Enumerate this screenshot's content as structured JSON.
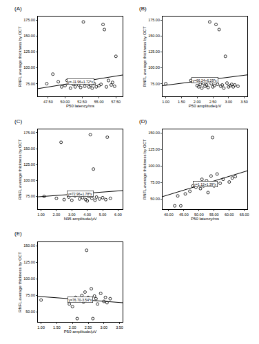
{
  "chart_data": [
    {
      "type": "scatter",
      "title": "(A)",
      "x_label": "P50 latency/ms",
      "y_label": "RNFL average thickness by OCT",
      "annotation": "y=-11.96+1.72*x",
      "color": "#000000",
      "marker": "open_circle",
      "x": [
        47.3,
        48.2,
        49.0,
        49.5,
        50.0,
        50.3,
        50.8,
        51.2,
        51.5,
        51.8,
        52.0,
        52.3,
        52.7,
        52.9,
        53.2,
        53.5,
        53.8,
        54.0,
        54.3,
        54.6,
        55.0,
        55.3,
        55.6,
        55.8,
        56.1,
        56.4,
        56.8,
        57.0,
        57.3,
        57.5
      ],
      "values": [
        75,
        90,
        78,
        70,
        72,
        80,
        68,
        74,
        70,
        79,
        73,
        69,
        172,
        71,
        76,
        70,
        73,
        68,
        75,
        70,
        72,
        74,
        168,
        160,
        70,
        80,
        73,
        77,
        71,
        118
      ],
      "fit_line": {
        "x": [
          46,
          58.5
        ],
        "values": [
          67.2,
          88.66
        ]
      },
      "xlim": [
        46,
        58.5
      ],
      "ylim": [
        55,
        180
      ],
      "xticks": [
        {
          "value": 47.5,
          "label": "47.50"
        },
        {
          "value": 50,
          "label": "50.00"
        },
        {
          "value": 52.5,
          "label": "52.50"
        },
        {
          "value": 55,
          "label": "55.00"
        },
        {
          "value": 57.5,
          "label": "57.50"
        }
      ],
      "yticks": [
        {
          "value": 75,
          "label": "75.00"
        },
        {
          "value": 100,
          "label": "100.00"
        },
        {
          "value": 125,
          "label": "125.00"
        },
        {
          "value": 150,
          "label": "150.00"
        },
        {
          "value": 175,
          "label": "175.00"
        }
      ]
    },
    {
      "type": "scatter",
      "title": "(B)",
      "x_label": "P50 amplitude/μV",
      "y_label": "RNFL average thickness by OCT",
      "annotation": "y=66.24+6.29*x",
      "color": "#000000",
      "marker": "open_circle",
      "x": [
        1.0,
        1.8,
        2.0,
        2.05,
        2.1,
        2.15,
        2.2,
        2.25,
        2.3,
        2.35,
        2.4,
        2.45,
        2.5,
        2.55,
        2.6,
        2.65,
        2.7,
        2.75,
        2.8,
        2.85,
        2.9,
        2.95,
        3.0,
        3.05,
        3.1,
        3.15,
        3.2,
        3.3
      ],
      "values": [
        75,
        80,
        72,
        70,
        74,
        68,
        76,
        71,
        73,
        69,
        172,
        75,
        70,
        72,
        168,
        74,
        160,
        71,
        73,
        68,
        118,
        76,
        70,
        72,
        74,
        70,
        73,
        71
      ],
      "fit_line": {
        "x": [
          0.9,
          3.6
        ],
        "values": [
          71.9,
          88.88
        ]
      },
      "xlim": [
        0.9,
        3.6
      ],
      "ylim": [
        55,
        180
      ],
      "xticks": [
        {
          "value": 1,
          "label": "1.00"
        },
        {
          "value": 1.5,
          "label": "1.50"
        },
        {
          "value": 2,
          "label": "2.00"
        },
        {
          "value": 2.5,
          "label": "2.50"
        },
        {
          "value": 3,
          "label": "3.00"
        },
        {
          "value": 3.5,
          "label": "3.50"
        }
      ],
      "yticks": [
        {
          "value": 75,
          "label": "75.00"
        },
        {
          "value": 100,
          "label": "100.00"
        },
        {
          "value": 125,
          "label": "125.00"
        },
        {
          "value": 150,
          "label": "150.00"
        },
        {
          "value": 175,
          "label": "175.00"
        }
      ]
    },
    {
      "type": "scatter",
      "title": "(C)",
      "x_label": "N95 amplitude/μV",
      "y_label": "RNFL average thickness by OCT",
      "annotation": "y=72.96+1.78*x",
      "color": "#000000",
      "marker": "open_circle",
      "x": [
        1.2,
        2.0,
        2.3,
        2.5,
        2.8,
        3.0,
        3.2,
        3.5,
        3.7,
        3.9,
        4.0,
        4.1,
        4.2,
        4.3,
        4.4,
        4.5,
        4.6,
        4.8,
        5.0,
        5.2,
        5.3,
        5.5
      ],
      "values": [
        75,
        72,
        160,
        70,
        74,
        69,
        76,
        71,
        73,
        70,
        68,
        75,
        172,
        72,
        118,
        69,
        74,
        71,
        73,
        70,
        168,
        72
      ],
      "fit_line": {
        "x": [
          0.8,
          6.3
        ],
        "values": [
          74.38,
          84.17
        ]
      },
      "xlim": [
        0.8,
        6.3
      ],
      "ylim": [
        55,
        180
      ],
      "xticks": [
        {
          "value": 1,
          "label": "1.00"
        },
        {
          "value": 2,
          "label": "2.00"
        },
        {
          "value": 3,
          "label": "3.00"
        },
        {
          "value": 4,
          "label": "4.00"
        },
        {
          "value": 5,
          "label": "5.00"
        },
        {
          "value": 6,
          "label": "6.00"
        }
      ],
      "yticks": [
        {
          "value": 75,
          "label": "75.00"
        },
        {
          "value": 100,
          "label": "100.00"
        },
        {
          "value": 125,
          "label": "125.00"
        },
        {
          "value": 150,
          "label": "150.00"
        },
        {
          "value": 175,
          "label": "175.00"
        }
      ]
    },
    {
      "type": "scatter",
      "title": "(D)",
      "x_label": "P50 latency/ms",
      "y_label": "RNFL average thickness by OCT",
      "annotation": "y=1.12+1.39*x",
      "color": "#000000",
      "marker": "open_circle",
      "x": [
        42,
        43,
        44,
        45.5,
        47,
        48,
        49,
        49.5,
        50,
        50.5,
        51,
        51.5,
        52,
        52.5,
        53,
        53.5,
        54,
        54.5,
        55,
        56,
        57,
        58,
        60,
        61,
        62
      ],
      "values": [
        40,
        55,
        40,
        58,
        62,
        70,
        68,
        72,
        75,
        66,
        80,
        70,
        74,
        78,
        60,
        72,
        85,
        143,
        70,
        88,
        74,
        80,
        76,
        82,
        84
      ],
      "fit_line": {
        "x": [
          38,
          66
        ],
        "values": [
          53.94,
          92.86
        ]
      },
      "xlim": [
        38,
        66
      ],
      "ylim": [
        35,
        155
      ],
      "xticks": [
        {
          "value": 40,
          "label": "40.00"
        },
        {
          "value": 45,
          "label": "45.00"
        },
        {
          "value": 50,
          "label": "50.00"
        },
        {
          "value": 55,
          "label": "55.00"
        },
        {
          "value": 60,
          "label": "60.00"
        },
        {
          "value": 65,
          "label": "65.00"
        }
      ],
      "yticks": [
        {
          "value": 50,
          "label": "50.00"
        },
        {
          "value": 75,
          "label": "75.00"
        },
        {
          "value": 100,
          "label": "100.00"
        },
        {
          "value": 125,
          "label": "125.00"
        },
        {
          "value": 150,
          "label": "150.00"
        }
      ]
    },
    {
      "type": "scatter",
      "title": "(E)",
      "x_label": "P50 amplitude/μV",
      "y_label": "RNFL average thickness by OCT",
      "annotation": "y=76.70-3.54*x",
      "color": "#000000",
      "marker": "open_circle",
      "x": [
        1.0,
        1.9,
        2.0,
        2.1,
        2.15,
        2.2,
        2.3,
        2.35,
        2.4,
        2.45,
        2.5,
        2.55,
        2.6,
        2.65,
        2.7,
        2.75,
        2.8,
        2.9,
        3.0,
        3.05,
        3.1,
        3.2
      ],
      "values": [
        68,
        62,
        58,
        72,
        40,
        70,
        75,
        65,
        80,
        143,
        72,
        68,
        85,
        40,
        74,
        70,
        62,
        78,
        66,
        72,
        64,
        70
      ],
      "fit_line": {
        "x": [
          0.9,
          3.6
        ],
        "values": [
          73.51,
          63.96
        ]
      },
      "xlim": [
        0.9,
        3.6
      ],
      "ylim": [
        35,
        155
      ],
      "xticks": [
        {
          "value": 1,
          "label": "1.00"
        },
        {
          "value": 1.5,
          "label": "1.50"
        },
        {
          "value": 2,
          "label": "2.00"
        },
        {
          "value": 2.5,
          "label": "2.50"
        },
        {
          "value": 3,
          "label": "3.00"
        },
        {
          "value": 3.5,
          "label": "3.50"
        }
      ],
      "yticks": [
        {
          "value": 50,
          "label": "50.00"
        },
        {
          "value": 75,
          "label": "75.00"
        },
        {
          "value": 100,
          "label": "100.00"
        },
        {
          "value": 125,
          "label": "125.00"
        },
        {
          "value": 150,
          "label": "150.00"
        }
      ]
    }
  ]
}
